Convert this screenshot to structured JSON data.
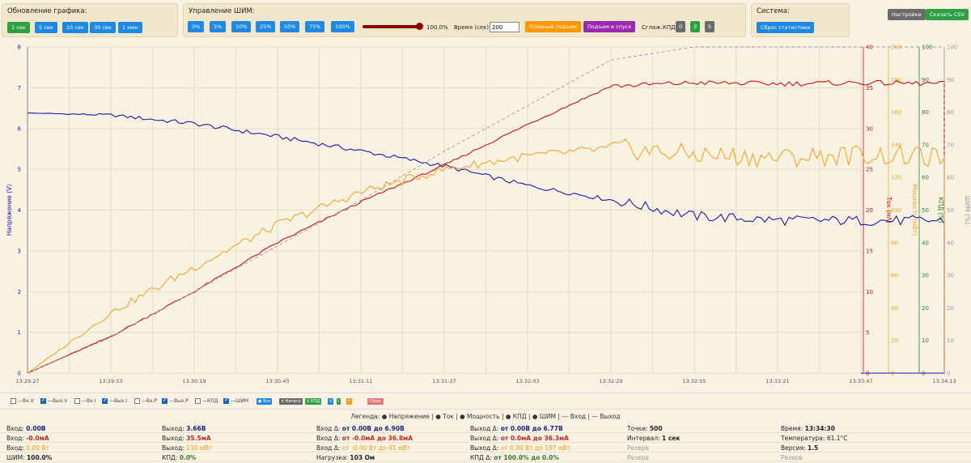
{
  "header": {
    "update_title": "Обновление графика:",
    "update_buttons": [
      "1 сек",
      "5 сек",
      "10 сек",
      "30 сек",
      "1 мин"
    ],
    "pwm_title": "Управление ШИМ:",
    "pwm_buttons": [
      "0%",
      "5%",
      "10%",
      "25%",
      "50%",
      "75%",
      "100%"
    ],
    "pwm_value": "100.0%",
    "pwm_fraction": 1.0,
    "time_label": "Время (сек):",
    "time_value": "200",
    "smooth_rise": "Плавный подъем",
    "rise_fall": "Подъем и спуск",
    "smooth_eff_label": "Сглаж.КПД:",
    "smooth_eff_options": [
      "0",
      "3",
      "5"
    ],
    "system_title": "Система:",
    "reset_stats": "Сброс статистики",
    "settings": "Настройки",
    "download_csv": "Скачать CSV"
  },
  "colors": {
    "voltage": "#1a1aaa",
    "current": "#d01010",
    "power": "#f5a623",
    "efficiency": "#2e7d32",
    "pwm": "#999999"
  },
  "chart_data": {
    "type": "line",
    "x": [
      "13:29:27",
      "13:29:53",
      "13:30:19",
      "13:30:45",
      "13:31:11",
      "13:31:37",
      "13:32:03",
      "13:32:29",
      "13:32:55",
      "13:33:21",
      "13:33:47",
      "13:34:13"
    ],
    "left_axis": {
      "label": "Напряжение (V)",
      "ylim": [
        0,
        8
      ],
      "ticks": [
        "0",
        "1",
        "2",
        "3",
        "4",
        "5",
        "6",
        "7",
        "8"
      ]
    },
    "right_axes": [
      {
        "label": "Ток (мА)",
        "ylim": [
          0,
          40
        ],
        "ticks": [
          "0",
          "5",
          "10",
          "15",
          "20",
          "25",
          "30",
          "35",
          "40"
        ]
      },
      {
        "label": "Мощность (мВт)",
        "ylim": [
          0,
          200
        ],
        "ticks": [
          "0",
          "20",
          "40",
          "60",
          "80",
          "100",
          "120",
          "140",
          "160",
          "180",
          "200"
        ]
      },
      {
        "label": "КПД (%)",
        "ylim": [
          0,
          100
        ],
        "ticks": [
          "0",
          "10",
          "20",
          "30",
          "40",
          "50",
          "60",
          "70",
          "80",
          "90",
          "100"
        ]
      },
      {
        "label": "ШИМ (%)",
        "ylim": [
          0,
          100
        ],
        "ticks": [
          "0",
          "10",
          "20",
          "30",
          "40",
          "50",
          "60",
          "70",
          "80",
          "90",
          "100"
        ]
      }
    ],
    "series": [
      {
        "name": "Вых.V",
        "axis": "left",
        "values": [
          6.38,
          6.33,
          6.12,
          5.8,
          5.45,
          5.08,
          4.6,
          4.25,
          3.85,
          3.75,
          3.74,
          3.74
        ]
      },
      {
        "name": "Вых.I",
        "axis": "current",
        "values": [
          0,
          4.5,
          10,
          16,
          21,
          25.5,
          30.5,
          35.2,
          35.6,
          35.5,
          35.6,
          35.5
        ]
      },
      {
        "name": "Вых.P",
        "axis": "power",
        "values": [
          0,
          37,
          65,
          91,
          111,
          125,
          133,
          138,
          134,
          132,
          134,
          132
        ]
      },
      {
        "name": "ШИМ",
        "axis": "pwm",
        "values": [
          0,
          11,
          25,
          39,
          53,
          68,
          82,
          96,
          100,
          100,
          100,
          100
        ]
      }
    ]
  },
  "toolbar": {
    "checkboxes": [
      {
        "label": "—Вх.V",
        "checked": false
      },
      {
        "label": "—Вых.V",
        "checked": true
      },
      {
        "label": "—Вх.I",
        "checked": false
      },
      {
        "label": "—Вых.I",
        "checked": true
      },
      {
        "label": "—Вх.P",
        "checked": false
      },
      {
        "label": "—Вых.P",
        "checked": true
      },
      {
        "label": "—КПД",
        "checked": false
      },
      {
        "label": "—ШИМ",
        "checked": true
      }
    ],
    "mini_buttons": [
      "● Все",
      "✕ Ничего",
      "V КПД",
      "V",
      "I",
      "P",
      "Сброс"
    ]
  },
  "legend": "Легенда: ● Напряжение | ● Ток | ● Мощность | ● КПД | ● ШИМ | --- Вход | — Выход",
  "stats": [
    [
      {
        "label": "Вход: ",
        "value": "0.00В",
        "cls": "v-blue"
      },
      {
        "label": "Выход: ",
        "value": "3.66В",
        "cls": "v-blue"
      },
      {
        "label": "Вход Δ: ",
        "value": "от 0.00В до 6.90В",
        "cls": "v-blue"
      },
      {
        "label": "Выход Δ: ",
        "value": "от 0.00В до 6.77В",
        "cls": "v-blue"
      },
      {
        "label": "Точки: ",
        "value": "500",
        "cls": "v-blk"
      },
      {
        "label": "Время: ",
        "value": "13:34:30",
        "cls": "v-blk"
      }
    ],
    [
      {
        "label": "Вход: ",
        "value": "-0.0мА",
        "cls": "v-red"
      },
      {
        "label": "Выход: ",
        "value": "35.5мА",
        "cls": "v-red"
      },
      {
        "label": "Вход Δ: ",
        "value": "от -0.0мА до 36.8мА",
        "cls": "v-red"
      },
      {
        "label": "Выход Δ: ",
        "value": "от 0.0мА до 36.3мА",
        "cls": "v-red"
      },
      {
        "label": "Интервал: ",
        "value": "1 сек",
        "cls": "v-blk"
      },
      {
        "label": "Температура: ",
        "value": "61.1°C",
        "cls": ""
      }
    ],
    [
      {
        "label": "Вход: ",
        "value": "0.00 Вт",
        "cls": "v-org"
      },
      {
        "label": "Выход: ",
        "value": "130 мВт",
        "cls": "v-org"
      },
      {
        "label": "Вход Δ: ",
        "value": "от -0.00 Вт до 41 мВт",
        "cls": "v-org"
      },
      {
        "label": "Выход Δ: ",
        "value": "от 0.00 Вт до 197 мВт",
        "cls": "v-org"
      },
      {
        "label": "",
        "value": "Резерв",
        "cls": "muted"
      },
      {
        "label": "Версия: ",
        "value": "1.5",
        "cls": "v-blk"
      }
    ],
    [
      {
        "label": "ШИМ: ",
        "value": "100.0%",
        "cls": "v-blk"
      },
      {
        "label": "КПД: ",
        "value": "0.0%",
        "cls": "v-grn"
      },
      {
        "label": "Нагрузка: ",
        "value": "103 Ом",
        "cls": "v-blk"
      },
      {
        "label": "КПД Δ: ",
        "value": "от 100.0% до 0.0%",
        "cls": "v-grn"
      },
      {
        "label": "",
        "value": "Резерв",
        "cls": "muted"
      },
      {
        "label": "",
        "value": "Резерв",
        "cls": "muted"
      }
    ]
  ]
}
